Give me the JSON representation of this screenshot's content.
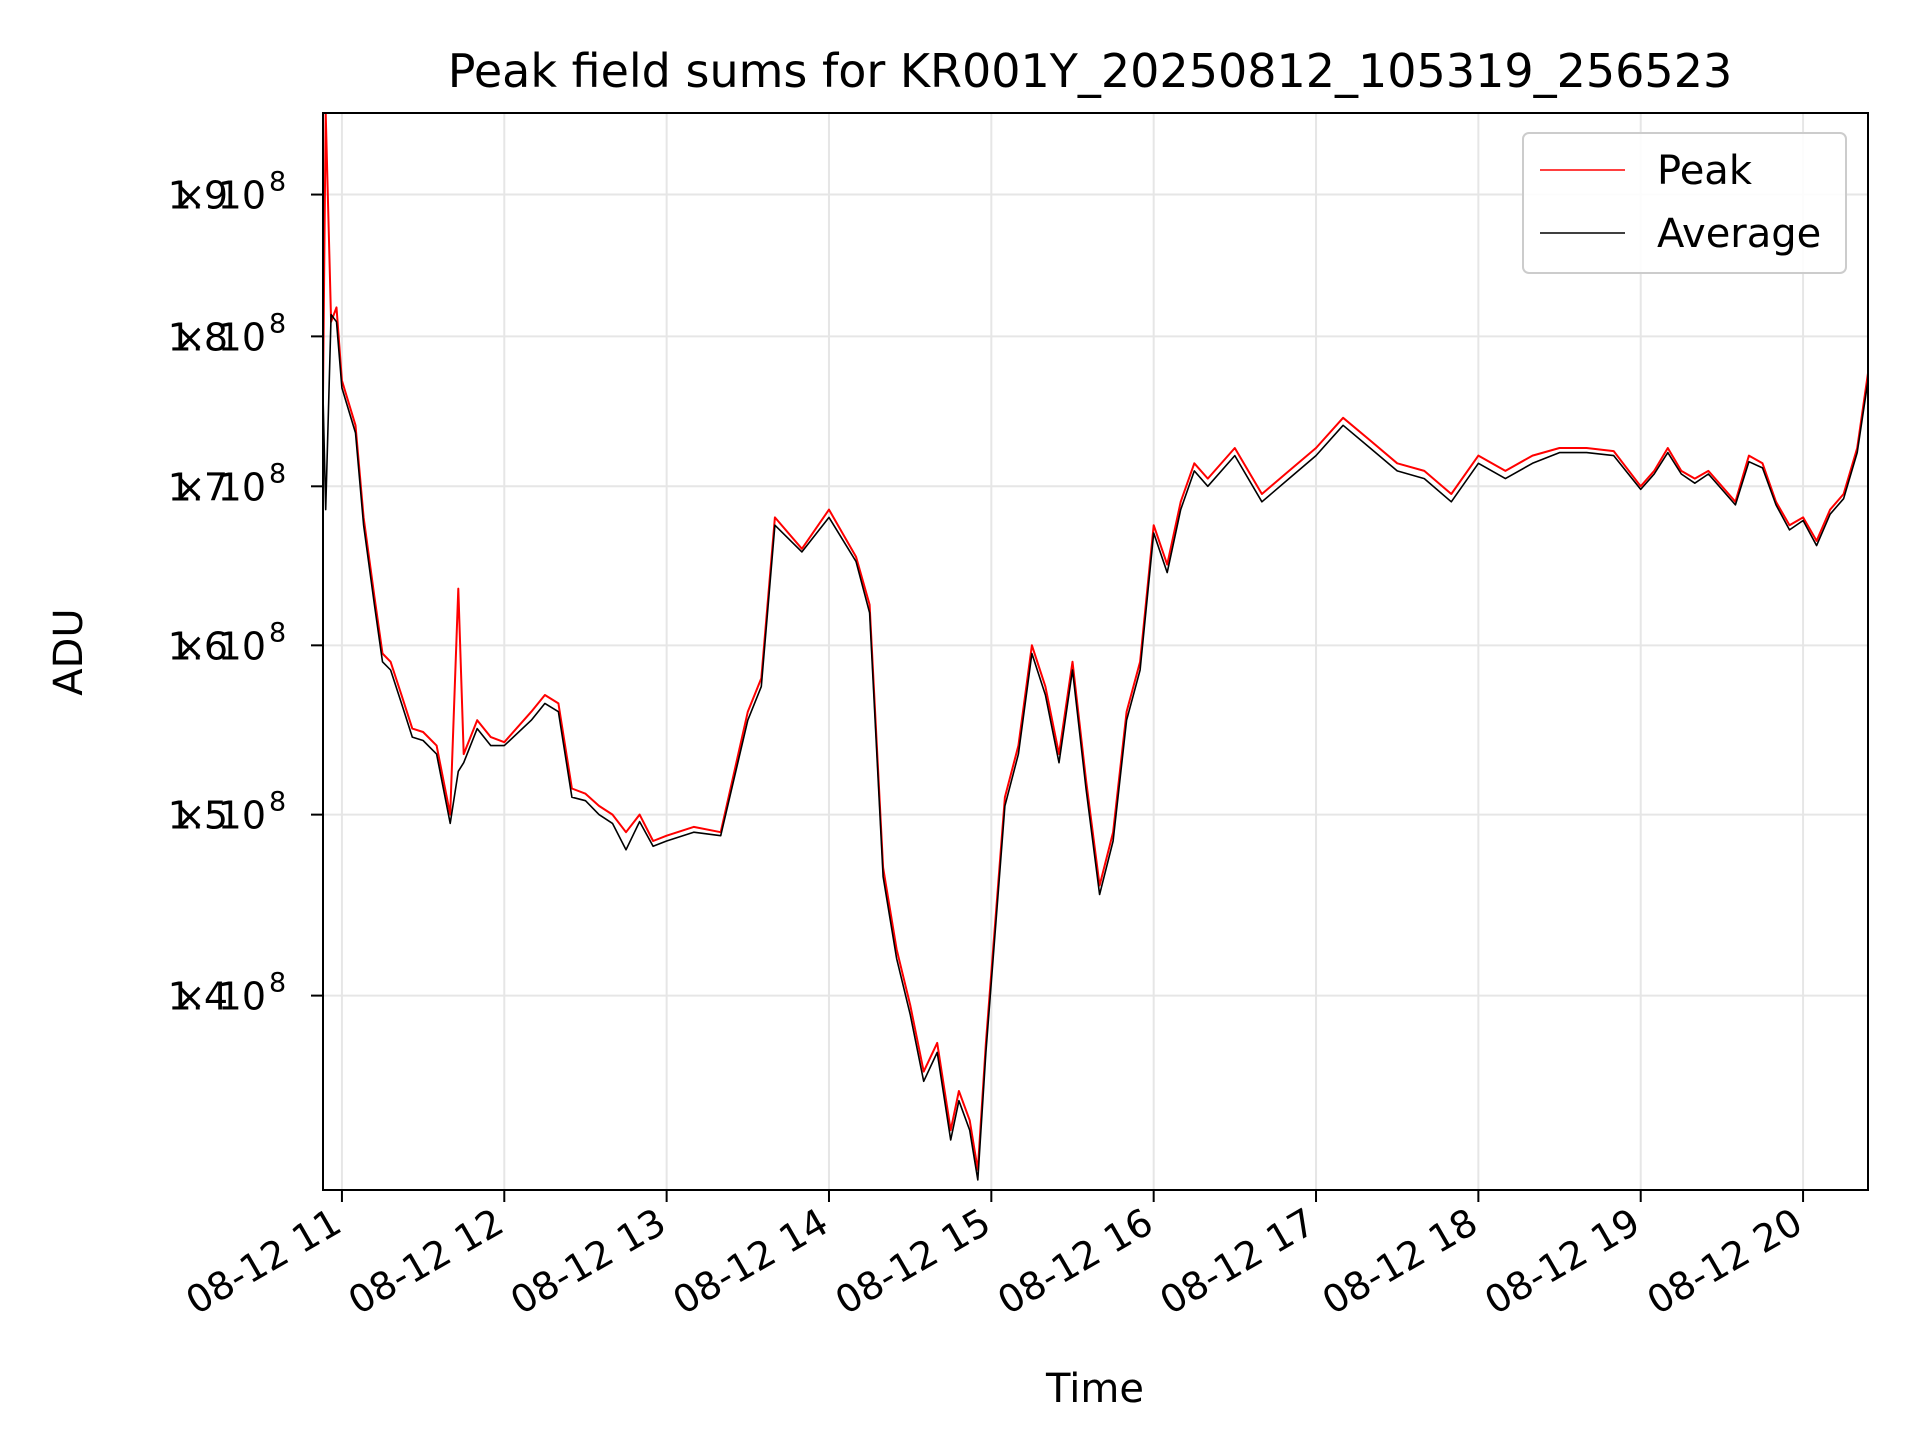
{
  "chart_data": {
    "type": "line",
    "title": "Peak field sums for KR001Y_20250812_105319_256523",
    "xlabel": "Time",
    "ylabel": "ADU",
    "grid": true,
    "legend_position": "top-right",
    "y_scale": "log",
    "xlim": [
      "08-12 10:53",
      "08-12 20:24"
    ],
    "ylim": [
      130000000,
      196000000
    ],
    "x_ticks": [
      "08-12 11",
      "08-12 12",
      "08-12 13",
      "08-12 14",
      "08-12 15",
      "08-12 16",
      "08-12 17",
      "08-12 18",
      "08-12 19",
      "08-12 20"
    ],
    "y_ticks": [
      {
        "value": 140000000,
        "mantissa": "1.4",
        "exponent": "8"
      },
      {
        "value": 150000000,
        "mantissa": "1.5",
        "exponent": "8"
      },
      {
        "value": 160000000,
        "mantissa": "1.6",
        "exponent": "8"
      },
      {
        "value": 170000000,
        "mantissa": "1.7",
        "exponent": "8"
      },
      {
        "value": 180000000,
        "mantissa": "1.8",
        "exponent": "8"
      },
      {
        "value": 190000000,
        "mantissa": "1.9",
        "exponent": "8"
      }
    ],
    "x": [
      "08-12 10:53",
      "08-12 10:54",
      "08-12 10:56",
      "08-12 10:58",
      "08-12 11:00",
      "08-12 11:05",
      "08-12 11:08",
      "08-12 11:12",
      "08-12 11:15",
      "08-12 11:18",
      "08-12 11:22",
      "08-12 11:26",
      "08-12 11:30",
      "08-12 11:35",
      "08-12 11:40",
      "08-12 11:43",
      "08-12 11:45",
      "08-12 11:50",
      "08-12 11:55",
      "08-12 12:00",
      "08-12 12:10",
      "08-12 12:15",
      "08-12 12:20",
      "08-12 12:25",
      "08-12 12:30",
      "08-12 12:35",
      "08-12 12:40",
      "08-12 12:45",
      "08-12 12:50",
      "08-12 12:55",
      "08-12 13:00",
      "08-12 13:10",
      "08-12 13:20",
      "08-12 13:30",
      "08-12 13:35",
      "08-12 13:40",
      "08-12 13:50",
      "08-12 14:00",
      "08-12 14:10",
      "08-12 14:15",
      "08-12 14:20",
      "08-12 14:25",
      "08-12 14:30",
      "08-12 14:35",
      "08-12 14:40",
      "08-12 14:45",
      "08-12 14:48",
      "08-12 14:52",
      "08-12 14:55",
      "08-12 14:58",
      "08-12 15:05",
      "08-12 15:10",
      "08-12 15:15",
      "08-12 15:20",
      "08-12 15:25",
      "08-12 15:30",
      "08-12 15:35",
      "08-12 15:40",
      "08-12 15:45",
      "08-12 15:50",
      "08-12 15:55",
      "08-12 16:00",
      "08-12 16:05",
      "08-12 16:10",
      "08-12 16:15",
      "08-12 16:20",
      "08-12 16:30",
      "08-12 16:40",
      "08-12 16:50",
      "08-12 17:00",
      "08-12 17:10",
      "08-12 17:20",
      "08-12 17:30",
      "08-12 17:40",
      "08-12 17:50",
      "08-12 18:00",
      "08-12 18:10",
      "08-12 18:20",
      "08-12 18:30",
      "08-12 18:40",
      "08-12 18:50",
      "08-12 19:00",
      "08-12 19:05",
      "08-12 19:10",
      "08-12 19:15",
      "08-12 19:20",
      "08-12 19:25",
      "08-12 19:30",
      "08-12 19:35",
      "08-12 19:40",
      "08-12 19:45",
      "08-12 19:50",
      "08-12 19:55",
      "08-12 20:00",
      "08-12 20:05",
      "08-12 20:10",
      "08-12 20:15",
      "08-12 20:20",
      "08-12 20:24"
    ],
    "series": [
      {
        "name": "Peak",
        "color": "#ff0000",
        "values": [
          176000000,
          196000000,
          181000000,
          182000000,
          177000000,
          174000000,
          168000000,
          163000000,
          159500000,
          159000000,
          157000000,
          155000000,
          154800000,
          154000000,
          150000000,
          163500000,
          153500000,
          155500000,
          154500000,
          154200000,
          156000000,
          157000000,
          156500000,
          151500000,
          151200000,
          150500000,
          150000000,
          149000000,
          150000000,
          148500000,
          148800000,
          149300000,
          149000000,
          156000000,
          158000000,
          168000000,
          166000000,
          168500000,
          165500000,
          162500000,
          147000000,
          142500000,
          139500000,
          136000000,
          137500000,
          133000000,
          135000000,
          133500000,
          131000000,
          137500000,
          151000000,
          154000000,
          160000000,
          157500000,
          153500000,
          159000000,
          152000000,
          146000000,
          149000000,
          156000000,
          159000000,
          167500000,
          165000000,
          169000000,
          171500000,
          170500000,
          172500000,
          169500000,
          171000000,
          172500000,
          174500000,
          173000000,
          171500000,
          171000000,
          169500000,
          172000000,
          171000000,
          172000000,
          172500000,
          172500000,
          172300000,
          170000000,
          171000000,
          172500000,
          171000000,
          170500000,
          171000000,
          170000000,
          169000000,
          172000000,
          171500000,
          169000000,
          167500000,
          168000000,
          166500000,
          168500000,
          169500000,
          172500000,
          177500000
        ]
      },
      {
        "name": "Average",
        "color": "#000000",
        "values": [
          176000000,
          168500000,
          181500000,
          181000000,
          176500000,
          173500000,
          167500000,
          162500000,
          159000000,
          158500000,
          156500000,
          154500000,
          154300000,
          153500000,
          149500000,
          152500000,
          153000000,
          155000000,
          154000000,
          154000000,
          155500000,
          156500000,
          156000000,
          151000000,
          150800000,
          150000000,
          149500000,
          148000000,
          149600000,
          148200000,
          148500000,
          149000000,
          148800000,
          155500000,
          157500000,
          167500000,
          165800000,
          168000000,
          165200000,
          162000000,
          146500000,
          142000000,
          139000000,
          135500000,
          137000000,
          132500000,
          134500000,
          133000000,
          130500000,
          137000000,
          150500000,
          153500000,
          159500000,
          157000000,
          153000000,
          158500000,
          151500000,
          145500000,
          148500000,
          155500000,
          158500000,
          167000000,
          164500000,
          168500000,
          171000000,
          170000000,
          172000000,
          169000000,
          170500000,
          172000000,
          174000000,
          172500000,
          171000000,
          170500000,
          169000000,
          171500000,
          170500000,
          171500000,
          172200000,
          172200000,
          172000000,
          169800000,
          170800000,
          172200000,
          170800000,
          170200000,
          170800000,
          169800000,
          168800000,
          171600000,
          171200000,
          168800000,
          167200000,
          167800000,
          166200000,
          168200000,
          169200000,
          172200000,
          177000000
        ]
      }
    ]
  }
}
